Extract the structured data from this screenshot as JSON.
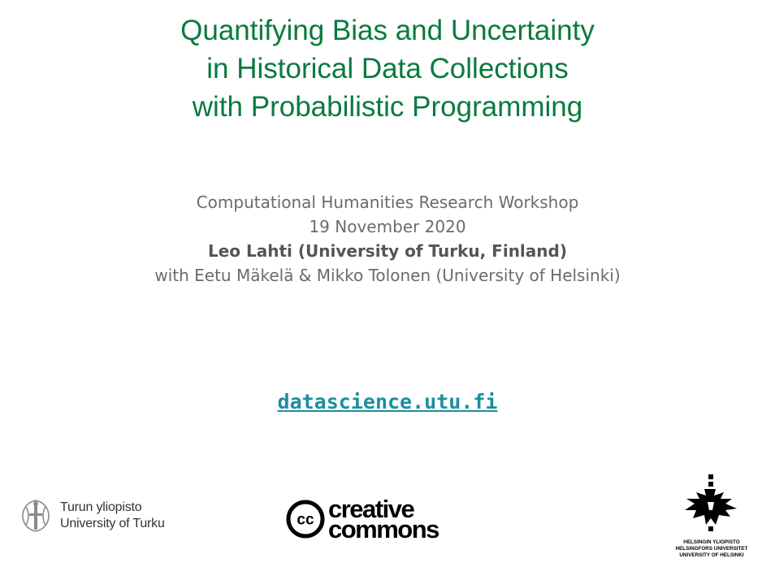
{
  "slide": {
    "title_lines": [
      "Quantifying Bias and Uncertainty",
      "in Historical Data Collections",
      "with Probabilistic Programming"
    ],
    "event": "Computational Humanities Research Workshop",
    "date": "19 November 2020",
    "author": "Leo Lahti (University of Turku, Finland)",
    "coauthors": "with Eetu Mäkelä & Mikko Tolonen (University of Helsinki)",
    "link": "datascience.utu.fi"
  },
  "logos": {
    "turku": {
      "line1": "Turun yliopisto",
      "line2": "University of Turku"
    },
    "cc": {
      "badge": "cc",
      "line1": "creative",
      "line2": "commons"
    },
    "helsinki": {
      "line1": "HELSINGIN YLIOPISTO",
      "line2": "HELSINGFORS UNIVERSITET",
      "line3": "UNIVERSITY OF HELSINKI"
    }
  },
  "colors": {
    "title": "#0a7a3f",
    "body_text": "#6b6b6b",
    "link": "#1b8f9e"
  }
}
